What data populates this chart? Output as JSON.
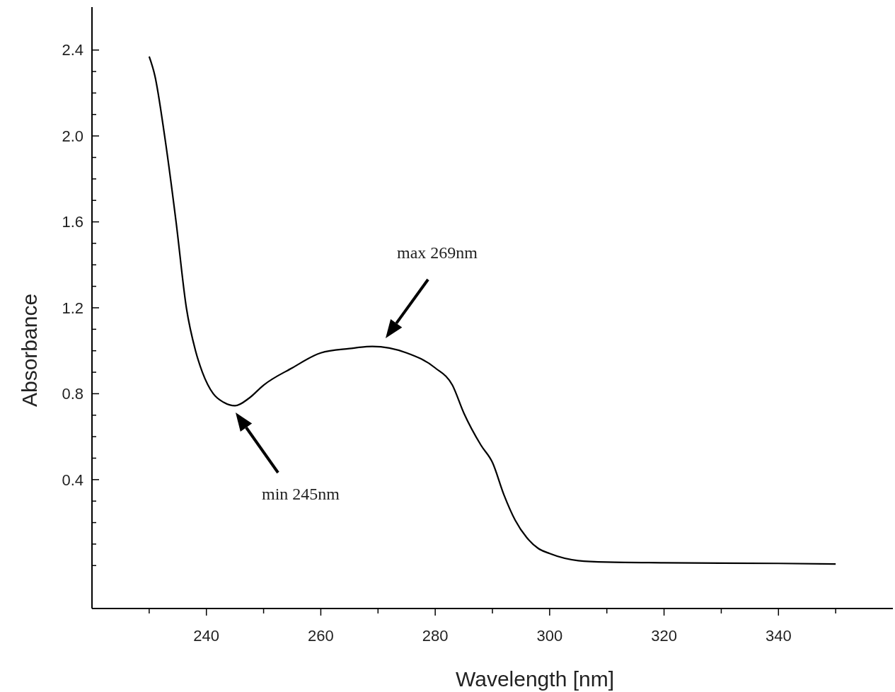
{
  "chart_data": {
    "type": "line",
    "xlabel": "Wavelength [nm]",
    "ylabel": "Absorbance",
    "x": [
      230,
      231,
      232.7,
      234.7,
      236.5,
      238.1,
      239.3,
      241.2,
      243,
      245,
      247.5,
      250,
      255,
      260,
      265,
      269,
      275,
      280,
      283,
      285,
      288,
      290,
      292,
      294,
      296,
      298,
      300,
      305,
      310,
      320,
      340,
      350
    ],
    "series": [
      {
        "color": "#000000",
        "values": [
          2.37,
          2.28,
          2.0,
          1.6,
          1.2,
          1.0,
          0.9,
          0.8,
          0.76,
          0.744,
          0.78,
          0.84,
          0.92,
          0.99,
          1.01,
          1.02,
          0.99,
          0.92,
          0.84,
          0.71,
          0.56,
          0.48,
          0.33,
          0.21,
          0.13,
          0.08,
          0.056,
          0.023,
          0.016,
          0.013,
          0.01,
          0.007
        ]
      }
    ],
    "xlim": [
      220,
      360
    ],
    "ylim": [
      -0.2,
      2.6
    ],
    "xticks": [
      {
        "value": 230,
        "label": null
      },
      240,
      {
        "value": 250,
        "label": null
      },
      260,
      {
        "value": 270,
        "label": null
      },
      280,
      {
        "value": 290,
        "label": null
      },
      300,
      {
        "value": 310,
        "label": null
      },
      320,
      {
        "value": 330,
        "label": null
      },
      340,
      {
        "value": 350,
        "label": null
      }
    ],
    "yticks": [
      {
        "value": 0,
        "label": null
      },
      {
        "value": 0.1,
        "label": null
      },
      {
        "value": 0.2,
        "label": null
      },
      {
        "value": 0.3,
        "label": null
      },
      {
        "value": 0.4,
        "label": "0.4"
      },
      {
        "value": 0.5,
        "label": null
      },
      {
        "value": 0.6,
        "label": null
      },
      {
        "value": 0.7,
        "label": null
      },
      {
        "value": 0.8,
        "label": "0.8"
      },
      {
        "value": 0.9,
        "label": null
      },
      {
        "value": 1.0,
        "label": null
      },
      {
        "value": 1.1,
        "label": null
      },
      {
        "value": 1.2,
        "label": "1.2"
      },
      {
        "value": 1.3,
        "label": null
      },
      {
        "value": 1.4,
        "label": null
      },
      {
        "value": 1.5,
        "label": null
      },
      {
        "value": 1.6,
        "label": "1.6"
      },
      {
        "value": 1.7,
        "label": null
      },
      {
        "value": 1.8,
        "label": null
      },
      {
        "value": 1.9,
        "label": null
      },
      {
        "value": 2.0,
        "label": "2.0"
      },
      {
        "value": 2.1,
        "label": null
      },
      {
        "value": 2.2,
        "label": null
      },
      {
        "value": 2.3,
        "label": null
      },
      {
        "value": 2.4,
        "label": "2.4"
      }
    ],
    "annotations": [
      "min 245nm",
      "max 269nm"
    ],
    "grid": false,
    "line_style": "solid",
    "marker": "none"
  }
}
